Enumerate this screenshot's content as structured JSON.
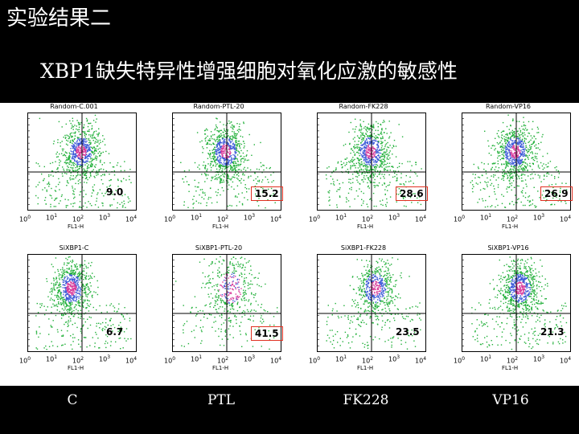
{
  "slide": {
    "title": "实验结果二",
    "subtitle": "XBP1缺失特异性增强细胞对氧化应激的敏感性"
  },
  "panels": [
    {
      "title": "Random-C.001",
      "value": "9.0",
      "highlight": false,
      "density": "high"
    },
    {
      "title": "Random-PTL-20",
      "value": "15.2",
      "highlight": true,
      "density": "high"
    },
    {
      "title": "Random-FK228",
      "value": "28.6",
      "highlight": true,
      "density": "high"
    },
    {
      "title": "Random-VP16",
      "value": "26.9",
      "highlight": true,
      "density": "high"
    },
    {
      "title": "SiXBP1-C",
      "value": "6.7",
      "highlight": false,
      "density": "high"
    },
    {
      "title": "SiXBP1-PTL-20",
      "value": "41.5",
      "highlight": true,
      "density": "low"
    },
    {
      "title": "SiXBP1-FK228",
      "value": "23.5",
      "highlight": false,
      "density": "med"
    },
    {
      "title": "SiXBP1-VP16",
      "value": "21.3",
      "highlight": false,
      "density": "high"
    }
  ],
  "axis": {
    "xlabel": "FL1-H",
    "ticks": [
      {
        "base": "10",
        "exp": "0"
      },
      {
        "base": "10",
        "exp": "1"
      },
      {
        "base": "10",
        "exp": "2"
      },
      {
        "base": "10",
        "exp": "3"
      },
      {
        "base": "10",
        "exp": "4"
      }
    ]
  },
  "conditions": [
    "C",
    "PTL",
    "FK228",
    "VP16"
  ],
  "colors": {
    "events": "#22b03a",
    "dense": "#3c5ad8",
    "peak": "#d83a9a",
    "highlight": "#e03020"
  }
}
